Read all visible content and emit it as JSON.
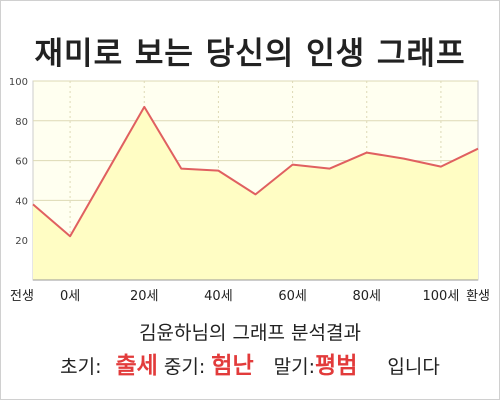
{
  "title": "재미로 보는 당신의 인생 그래프",
  "result": {
    "heading": "김윤하님의 그래프 분석결과",
    "early_label": "초기:",
    "early_value": "출세",
    "middle_label": "중기:",
    "middle_value": "험난",
    "late_label": "말기:",
    "late_value": "평범",
    "suffix": "입니다"
  },
  "colors": {
    "line": "#e06060",
    "fill": "#fffdc4",
    "plot_bg": "#fffff0",
    "grid": "#ddd9b5",
    "value_text": "#e23b3b"
  },
  "chart_data": {
    "type": "area",
    "title": "",
    "xlabel": "",
    "ylabel": "",
    "ylim": [
      0,
      100
    ],
    "xlim": [
      -10,
      110
    ],
    "yticks": [
      20,
      40,
      60,
      80,
      100
    ],
    "xticks": [
      {
        "value": -10,
        "label": "전생"
      },
      {
        "value": 0,
        "label": "0세"
      },
      {
        "value": 20,
        "label": "20세"
      },
      {
        "value": 40,
        "label": "40세"
      },
      {
        "value": 60,
        "label": "60세"
      },
      {
        "value": 80,
        "label": "80세"
      },
      {
        "value": 100,
        "label": "100세"
      },
      {
        "value": 110,
        "label": "환생"
      }
    ],
    "grid": true,
    "series": [
      {
        "x": [
          -10,
          0,
          20,
          30,
          40,
          50,
          60,
          70,
          80,
          90,
          100,
          110
        ],
        "values": [
          38,
          22,
          87,
          56,
          55,
          43,
          58,
          56,
          64,
          61,
          57,
          66
        ]
      }
    ]
  }
}
